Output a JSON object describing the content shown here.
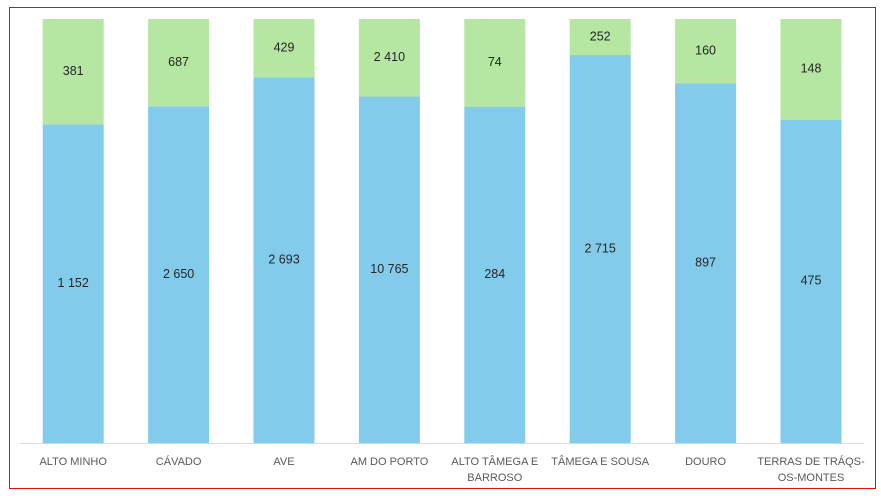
{
  "chart_data": {
    "type": "bar",
    "stacked": "percent",
    "categories": [
      "ALTO MINHO",
      "CÁVADO",
      "AVE",
      "AM DO PORTO",
      "ALTO TÂMEGA E BARROSO",
      "TÂMEGA E SOUSA",
      "DOURO",
      "TERRAS DE TRÁQS-OS-MONTES"
    ],
    "category_lines": [
      [
        "ALTO MINHO"
      ],
      [
        "CÁVADO"
      ],
      [
        "AVE"
      ],
      [
        "AM DO PORTO"
      ],
      [
        "ALTO TÂMEGA E",
        "BARROSO"
      ],
      [
        "TÂMEGA E SOUSA"
      ],
      [
        "DOURO"
      ],
      [
        "TERRAS DE TRÁQS-",
        "OS-MONTES"
      ]
    ],
    "series": [
      {
        "values": [
          1152,
          2650,
          2693,
          10765,
          284,
          2715,
          897,
          475
        ],
        "labels": [
          "1 152",
          "2 650",
          "2 693",
          "10 765",
          "284",
          "2 715",
          "897",
          "475"
        ],
        "color": "#83cbeb"
      },
      {
        "values": [
          381,
          687,
          429,
          2410,
          74,
          252,
          160,
          148
        ],
        "labels": [
          "381",
          "687",
          "429",
          "2 410",
          "74",
          "252",
          "160",
          "148"
        ],
        "color": "#b5e6a2"
      }
    ],
    "ylim": [
      0,
      100
    ],
    "grid": false,
    "legend": "none",
    "axis_color": "#d9d9d9",
    "border_color": "#d9100f"
  }
}
